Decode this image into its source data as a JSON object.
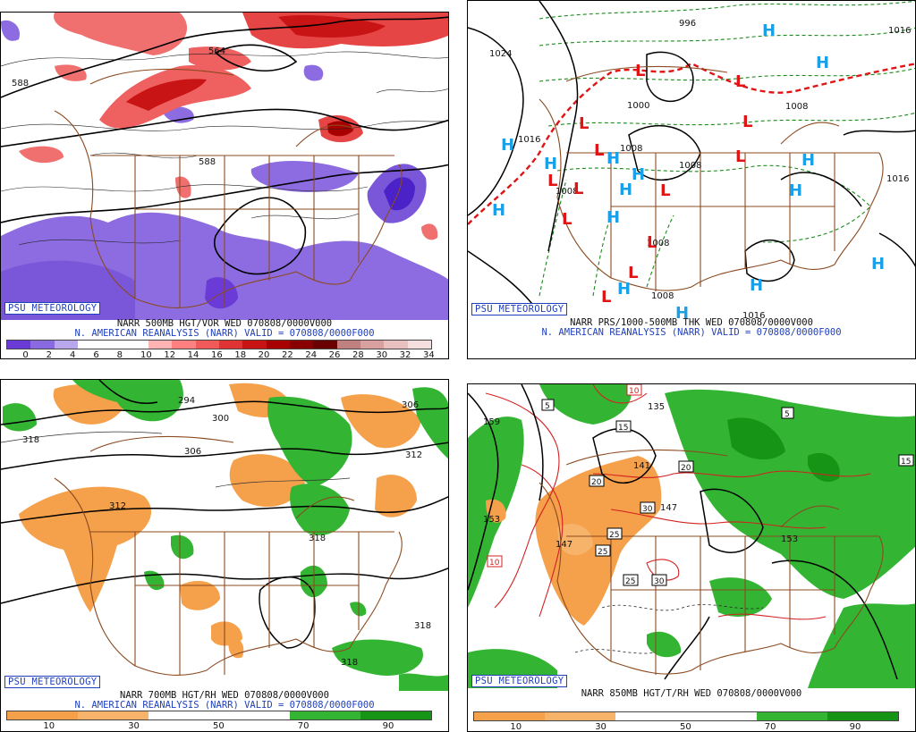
{
  "panels": {
    "vorticity": {
      "badge": "PSU METEOROLOGY",
      "title_line1": "NARR 500MB HGT/VOR WED 070808/0000V000",
      "title_line2": "N. AMERICAN REANALYSIS (NARR) VALID = 070808/0000F000",
      "colorbar_labels": [
        "0",
        "2",
        "4",
        "6",
        "8",
        "10",
        "12",
        "14",
        "16",
        "18",
        "20",
        "22",
        "24",
        "26",
        "28",
        "30",
        "32",
        "34"
      ],
      "colorbar_colors": [
        "#6a3bd6",
        "#8a6ae0",
        "#b9a7ee",
        "#ffffff",
        "#ffffff",
        "#ffffff",
        "#ffb3b3",
        "#ff8080",
        "#f25a5a",
        "#e03333",
        "#c81414",
        "#a80000",
        "#8a0000",
        "#6b0000",
        "#c08080",
        "#d9a0a0",
        "#e8c0c0",
        "#f5dede"
      ],
      "contour_labels": [
        "588",
        "564",
        "588"
      ]
    },
    "surface": {
      "badge": "PSU METEOROLOGY",
      "title_line1": "NARR PRS/1000-500MB THK WED 070808/0000V000",
      "title_line2": "N. AMERICAN REANALYSIS (NARR) VALID = 070808/0000F000",
      "contour_labels": [
        "1024",
        "1016",
        "1000",
        "1008",
        "1008",
        "1016",
        "1016",
        "1008",
        "1016",
        "1008",
        "1008",
        "1008",
        "996"
      ],
      "high_symbol": "H",
      "low_symbol": "L"
    },
    "rh700": {
      "badge": "PSU METEOROLOGY",
      "title_line1": "NARR 700MB HGT/RH WED 070808/0000V000",
      "title_line2": "N. AMERICAN REANALYSIS (NARR) VALID = 070808/0000F000",
      "colorbar_labels": [
        "10",
        "30",
        "50",
        "70",
        "90"
      ],
      "colorbar_colors": [
        "#f5a04a",
        "#f7b36a",
        "#ffffff",
        "#ffffff",
        "#33b533",
        "#159415"
      ],
      "contour_labels": [
        "318",
        "294",
        "300",
        "306",
        "306",
        "312",
        "312",
        "318",
        "318",
        "318"
      ]
    },
    "t850": {
      "badge": "PSU METEOROLOGY",
      "title_line1": "NARR 850MB HGT/T/RH WED 070808/0000V000",
      "colorbar_labels": [
        "10",
        "30",
        "50",
        "70",
        "90"
      ],
      "colorbar_colors": [
        "#f5a04a",
        "#f7b36a",
        "#ffffff",
        "#ffffff",
        "#33b533",
        "#159415"
      ],
      "contour_labels": [
        "159",
        "135",
        "141",
        "147",
        "153",
        "147",
        "153",
        "5",
        "5",
        "15",
        "15",
        "20",
        "20",
        "25",
        "25",
        "25",
        "30",
        "30",
        "10",
        "10"
      ]
    }
  }
}
